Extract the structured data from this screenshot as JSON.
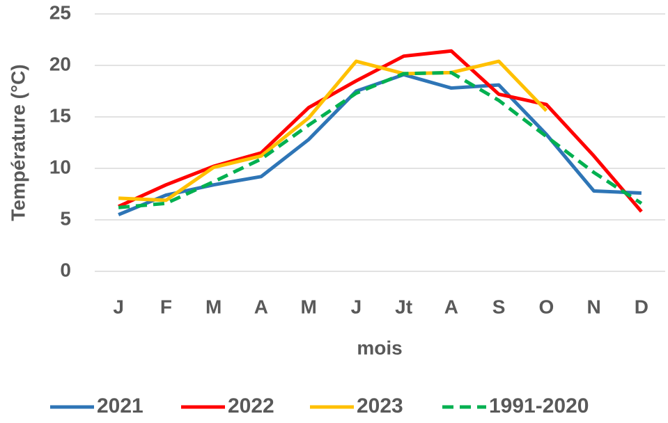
{
  "chart_data": {
    "type": "line",
    "y_label": "Température (°C)",
    "x_label": "mois",
    "categories": [
      "J",
      "F",
      "M",
      "A",
      "M",
      "J",
      "Jt",
      "A",
      "S",
      "O",
      "N",
      "D"
    ],
    "series": [
      {
        "name": "2021",
        "color": "#2e75b6",
        "values": [
          5.5,
          7.4,
          8.4,
          9.2,
          12.8,
          17.5,
          19.1,
          17.8,
          18.1,
          13.3,
          7.8,
          7.6
        ]
      },
      {
        "name": "2022",
        "color": "#ff0000",
        "values": [
          6.3,
          8.4,
          10.2,
          11.5,
          15.9,
          18.5,
          20.9,
          21.4,
          17.2,
          16.2,
          11.2,
          5.8
        ]
      },
      {
        "name": "2023",
        "color": "#ffc000",
        "values": [
          7.1,
          6.9,
          10.1,
          11.2,
          14.9,
          20.4,
          19.2,
          19.3,
          20.4,
          15.6,
          null,
          null
        ]
      },
      {
        "name": "1991-2020",
        "color": "#00b050",
        "line_style": "dashed",
        "values": [
          6.2,
          6.6,
          8.7,
          10.9,
          14.2,
          17.3,
          19.2,
          19.3,
          16.6,
          13.1,
          9.6,
          6.6
        ]
      }
    ],
    "ylim": [
      0,
      25
    ],
    "yticks": [
      0,
      5,
      10,
      15,
      20,
      25
    ],
    "grid": true,
    "legend": "bottom"
  }
}
